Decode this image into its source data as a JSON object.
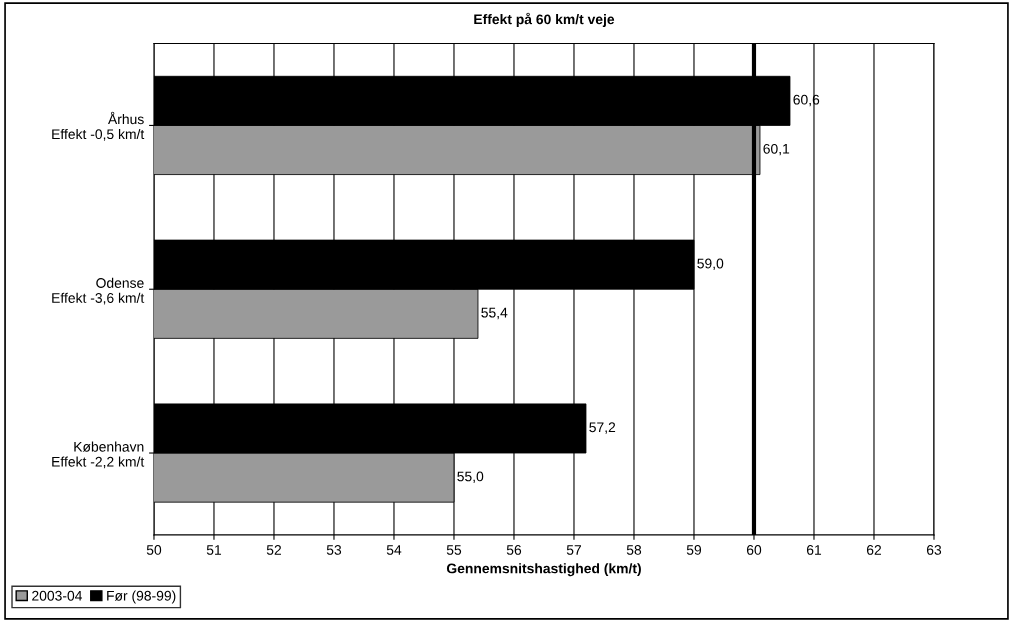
{
  "chart_data": {
    "type": "bar",
    "orientation": "horizontal",
    "title": "Effekt på 60 km/t veje",
    "xlabel": "Gennemsnitshastighed (km/t)",
    "categories": [
      "Århus\nEffekt -0,5 km/t",
      "Odense\nEffekt -3,6 km/t",
      "København\nEffekt -2,2 km/t"
    ],
    "series": [
      {
        "name": "2003-04",
        "color": "#9a9a9a",
        "values": [
          60.1,
          55.4,
          55.0
        ],
        "value_labels": [
          "60,1",
          "55,4",
          "55,0"
        ]
      },
      {
        "name": "Før (98-99)",
        "color": "#000000",
        "values": [
          60.6,
          59.0,
          57.2
        ],
        "value_labels": [
          "60,6",
          "59,0",
          "57,2"
        ]
      }
    ],
    "xlim": [
      50,
      63
    ],
    "xticks": [
      50,
      51,
      52,
      53,
      54,
      55,
      56,
      57,
      58,
      59,
      60,
      61,
      62,
      63
    ],
    "ref_lines": [
      {
        "axis": "x",
        "value": 60,
        "color": "#000000"
      }
    ],
    "grid": "x",
    "legend": "bottom left"
  }
}
